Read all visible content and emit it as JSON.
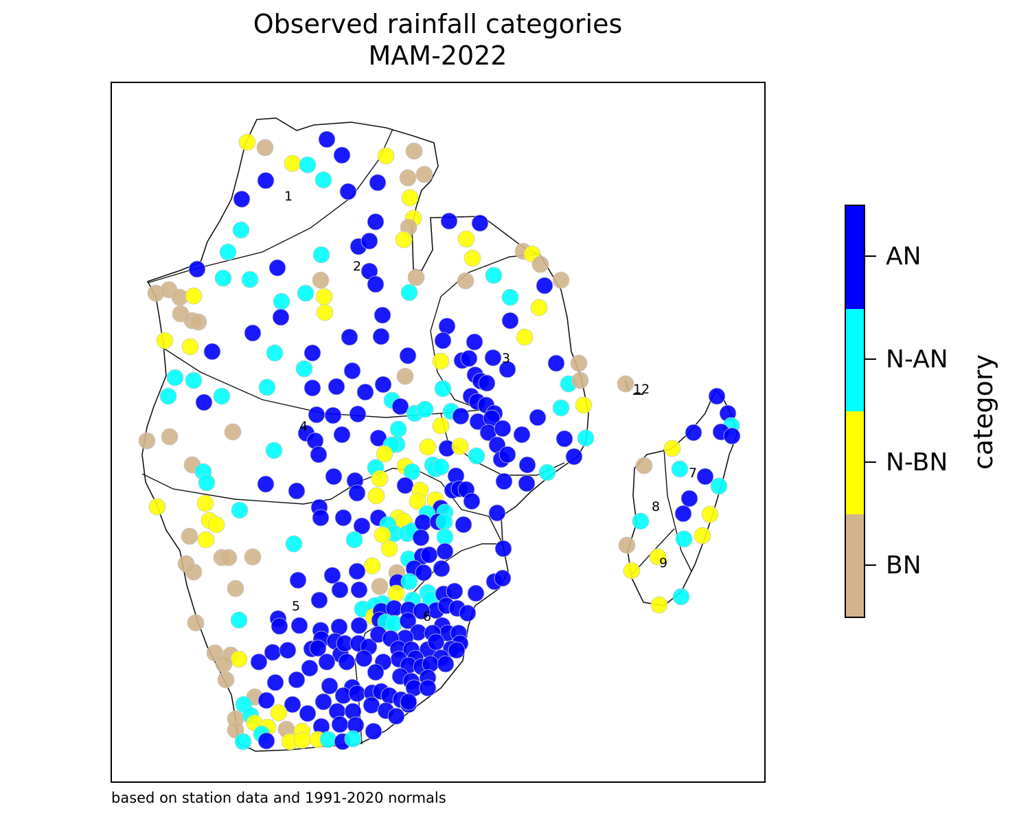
{
  "title": {
    "line1": "Observed rainfall categories",
    "line2": "MAM-2022"
  },
  "footnote": "based on station data and 1991-2020 normals",
  "colorbar": {
    "title": "category",
    "categories": [
      {
        "label": "AN",
        "color": "#0000ff"
      },
      {
        "label": "N-AN",
        "color": "#00ffff"
      },
      {
        "label": "N-BN",
        "color": "#ffff00"
      },
      {
        "label": "BN",
        "color": "#d2b48c"
      }
    ]
  },
  "regions": [
    "1",
    "2",
    "3",
    "4",
    "5",
    "6",
    "7",
    "8",
    "9",
    "12"
  ],
  "stations_summary": {
    "AN": "majority in south-east and central regions",
    "N-AN": "scattered",
    "N-BN": "scattered",
    "BN": "mostly western coast and north"
  }
}
